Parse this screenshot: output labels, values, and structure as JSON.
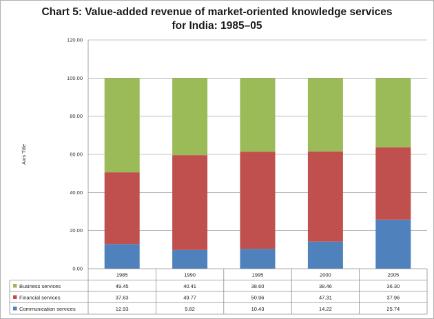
{
  "chart_data": {
    "type": "bar",
    "stacked": true,
    "title_line1": "Chart 5: Value-added revenue of market-oriented knowledge services",
    "title_line2": "for India: 1985–05",
    "ylabel": "Axis Title",
    "ylim": [
      0,
      120
    ],
    "yticks": [
      "0.00",
      "20.00",
      "40.00",
      "60.00",
      "80.00",
      "100.00",
      "120.00"
    ],
    "categories": [
      "1985",
      "1990",
      "1995",
      "2000",
      "2005"
    ],
    "grid": true,
    "legend_placement": "data-table-left",
    "series": [
      {
        "name": "Business services",
        "color": "#9bbb59",
        "values": [
          49.45,
          40.41,
          38.6,
          38.46,
          36.3
        ],
        "labels": [
          "49.45",
          "40.41",
          "38.60",
          "38.46",
          "36.30"
        ]
      },
      {
        "name": "Financial services",
        "color": "#c0504d",
        "values": [
          37.63,
          49.77,
          50.96,
          47.31,
          37.96
        ],
        "labels": [
          "37.63",
          "49.77",
          "50.96",
          "47.31",
          "37.96"
        ]
      },
      {
        "name": "Communication services",
        "color": "#4f81bd",
        "values": [
          12.93,
          9.82,
          10.43,
          14.22,
          25.74
        ],
        "labels": [
          "12.93",
          "9.82",
          "10.43",
          "14.22",
          "25.74"
        ]
      }
    ]
  }
}
